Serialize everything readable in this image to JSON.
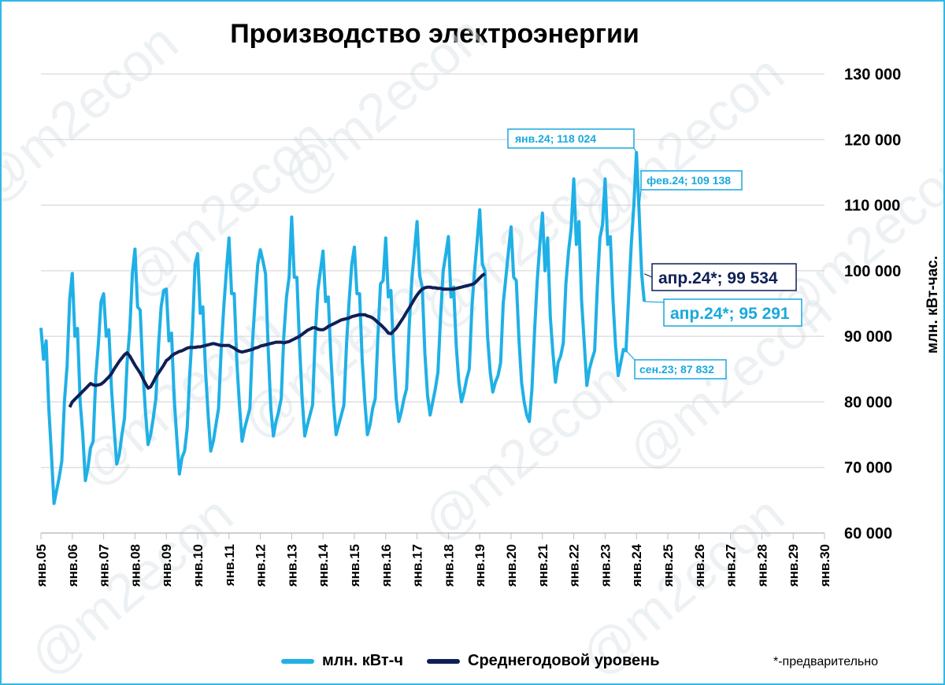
{
  "chart_data": {
    "type": "line",
    "title": "Производство электроэнергии",
    "ylabel": "млн. кВт-час.",
    "ylim": [
      60000,
      130000
    ],
    "yticks": [
      60000,
      70000,
      80000,
      90000,
      100000,
      110000,
      120000,
      130000
    ],
    "ytick_labels": [
      "60 000",
      "70 000",
      "80 000",
      "90 000",
      "100 000",
      "110 000",
      "120 000",
      "130 000"
    ],
    "x_tick_labels": [
      "янв.05",
      "янв.06",
      "янв.07",
      "янв.08",
      "янв.09",
      "янв.10",
      "янв.11",
      "янв.12",
      "янв.13",
      "янв.14",
      "янв.15",
      "янв.16",
      "янв.17",
      "янв.18",
      "янв.19",
      "янв.20",
      "янв.21",
      "янв.22",
      "янв.23",
      "янв.24",
      "янв.25",
      "янв.26",
      "янв.27",
      "янв.28",
      "янв.29",
      "янв.30"
    ],
    "x_start": "янв.05",
    "grid": "horizontal",
    "legend_position": "bottom",
    "yaxis_side": "right",
    "series": [
      {
        "name": "млн. кВт-ч",
        "color": "#1fb0e6",
        "values": [
          [
            91300,
            86500,
            89300,
            79000,
            72000,
            64500,
            66500,
            68500,
            71000,
            80000,
            85500,
            95700
          ],
          [
            99600,
            90000,
            91200,
            80000,
            75000,
            68000,
            70000,
            73000,
            74000,
            84000,
            89000,
            95300
          ],
          [
            96500,
            90000,
            91000,
            82000,
            76000,
            70500,
            72000,
            75000,
            77500,
            86000,
            91000,
            99600
          ],
          [
            103300,
            94500,
            94000,
            85000,
            78500,
            73500,
            75000,
            77500,
            80500,
            88500,
            94500,
            97000
          ],
          [
            97200,
            89300,
            90500,
            80500,
            74500,
            69000,
            71500,
            72500,
            76000,
            84500,
            91000,
            101000
          ],
          [
            102600,
            93500,
            94500,
            85000,
            78000,
            72500,
            74000,
            76500,
            79000,
            88000,
            94500,
            100000
          ],
          [
            105000,
            96500,
            96500,
            86000,
            79500,
            74000,
            76000,
            77500,
            79000,
            89000,
            95500,
            101000
          ],
          [
            103200,
            101500,
            99500,
            88000,
            79000,
            74800,
            77000,
            78500,
            80500,
            90000,
            96000,
            99000
          ],
          [
            108200,
            99000,
            99000,
            88500,
            80500,
            74800,
            76500,
            78000,
            79500,
            90000,
            97000,
            100000
          ],
          [
            103000,
            95300,
            96000,
            87000,
            80000,
            75000,
            76500,
            78000,
            79500,
            89000,
            95500,
            101000
          ],
          [
            103600,
            96500,
            96500,
            86500,
            80000,
            75000,
            76500,
            79000,
            80500,
            90000,
            98000,
            98500
          ],
          [
            105000,
            96000,
            97000,
            87500,
            80500,
            77000,
            78500,
            80500,
            82000,
            91500,
            98800,
            103000
          ],
          [
            107500,
            99300,
            97500,
            87500,
            81000,
            78000,
            80000,
            82000,
            84500,
            93000,
            100000,
            102500
          ],
          [
            105200,
            96000,
            97500,
            88500,
            83000,
            80000,
            81500,
            83500,
            85000,
            94500,
            100000,
            104500
          ],
          [
            109300,
            101000,
            100000,
            90000,
            84500,
            81500,
            83000,
            84000,
            86000,
            95000,
            99000,
            103000
          ],
          [
            106700,
            99000,
            98500,
            89500,
            83000,
            80000,
            78000,
            77000,
            82000,
            91000,
            98500,
            104000
          ],
          [
            108800,
            100000,
            105000,
            93000,
            87500,
            83000,
            86000,
            87000,
            89000,
            98000,
            103000,
            106500
          ],
          [
            114000,
            104000,
            107500,
            95500,
            89000,
            82500,
            85000,
            86500,
            87800,
            97500,
            105000,
            107000
          ],
          [
            114000,
            104000,
            105200,
            95500,
            88500,
            84000,
            86000,
            88000,
            87800,
            96000,
            104000,
            110000
          ],
          [
            118024,
            109138,
            99500,
            95291
          ]
        ]
      },
      {
        "name": "Среднегодовой уровень",
        "color": "#0f1f56",
        "values": [
          [
            79200,
            80000,
            80400,
            80800,
            81200,
            81600,
            82000,
            82400,
            82800,
            82600,
            82500,
            82600
          ],
          [
            82700,
            83000,
            83400,
            83800,
            84300,
            85000,
            85600,
            86200,
            86700,
            87200,
            87500,
            87000
          ],
          [
            86300,
            85600,
            85000,
            84400,
            83600,
            82800,
            82100,
            82300,
            83000,
            83800,
            84400,
            85000
          ],
          [
            85600,
            86300,
            86600,
            87000,
            87300,
            87500,
            87700,
            87800,
            88000,
            88200,
            88300,
            88300
          ],
          [
            88300,
            88400,
            88400,
            88500,
            88600,
            88700,
            88800,
            88900,
            88800,
            88700,
            88600,
            88600
          ],
          [
            88600,
            88600,
            88400,
            88200,
            87900,
            87700,
            87600,
            87700,
            87800,
            87900,
            88000,
            88200
          ],
          [
            88300,
            88500,
            88600,
            88700,
            88800,
            88900,
            89000,
            89100,
            89100,
            89100,
            89000,
            89100
          ],
          [
            89200,
            89400,
            89600,
            89800,
            90000,
            90300,
            90600,
            90900,
            91100,
            91300,
            91300,
            91100
          ],
          [
            91000,
            91000,
            91200,
            91500,
            91700,
            91900,
            92100,
            92300,
            92500,
            92600,
            92700,
            92800
          ],
          [
            93000,
            93100,
            93200,
            93300,
            93300,
            93300,
            93100,
            93000,
            92800,
            92500,
            92100,
            91800
          ],
          [
            91400,
            91000,
            90500,
            90400,
            90800,
            91200,
            91800,
            92400,
            93000,
            93700,
            94300,
            95000
          ],
          [
            95700,
            96300,
            96800,
            97200,
            97400,
            97500,
            97500,
            97400,
            97400,
            97300,
            97300,
            97200
          ],
          [
            97200,
            97200,
            97200,
            97200,
            97300,
            97400,
            97500,
            97600,
            97700,
            97800,
            97900,
            98100
          ],
          [
            98500,
            98900,
            99300,
            99534
          ]
        ]
      }
    ],
    "annotations": [
      {
        "label": "янв.24; 118 024",
        "point": "янв.24",
        "value": 118024
      },
      {
        "label": "фев.24; 109 138",
        "point": "фев.24",
        "value": 109138
      },
      {
        "label": "апр.24*;  99 534",
        "point": "апр.24*",
        "value": 99534
      },
      {
        "label": "апр.24*; 95 291",
        "point": "апр.24*",
        "value": 95291
      },
      {
        "label": "сен.23; 87 832",
        "point": "сен.23",
        "value": 87832
      }
    ]
  },
  "watermark": "@m2econ",
  "legend": {
    "items": [
      "млн. кВт-ч",
      "Среднегодовой уровень"
    ],
    "note": "*-предварительно"
  },
  "colors": {
    "border": "#2fb9e6",
    "grid": "#d0d0d0",
    "axis": "#bfbfbf"
  }
}
